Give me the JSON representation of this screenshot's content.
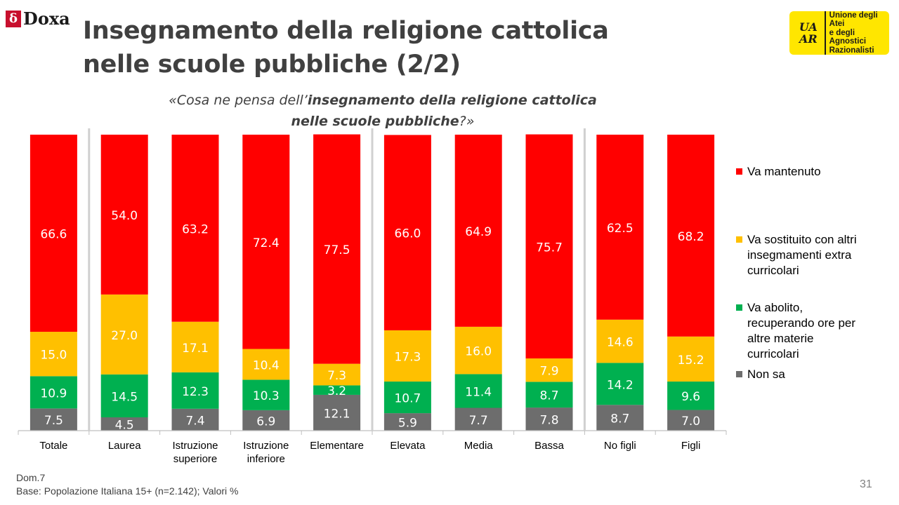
{
  "logo": {
    "text": "Doxa",
    "mark": "δ"
  },
  "title_lines": [
    "Insegnamento della religione cattolica",
    "nelle scuole pubbliche (2/2)"
  ],
  "question": {
    "p1": "«Cosa ne pensa dell’",
    "p2": "insegnamento della religione cattolica",
    "p3": "nelle scuole pubbliche",
    "p4": "?»"
  },
  "uaar": {
    "mono_line1": "UA",
    "mono_line2": "AR",
    "lines": [
      "Unione degli Atei",
      "e degli Agnostici",
      "Razionalisti"
    ]
  },
  "chart_data": {
    "type": "bar",
    "stacked": true,
    "percent": true,
    "categories": [
      [
        "Totale"
      ],
      [
        "Laurea"
      ],
      [
        "Istruzione",
        "superiore"
      ],
      [
        "Istruzione",
        "inferiore"
      ],
      [
        "Elementare"
      ],
      [
        "Elevata"
      ],
      [
        "Media"
      ],
      [
        "Bassa"
      ],
      [
        "No figli"
      ],
      [
        "Figli"
      ]
    ],
    "series": [
      {
        "name": "Non sa",
        "color": "#6d6d6d",
        "values": [
          7.5,
          4.5,
          7.4,
          6.9,
          12.1,
          5.9,
          7.7,
          7.8,
          8.7,
          7.0
        ]
      },
      {
        "name": "Va abolito, recuperando ore per altre materie curricolari",
        "color": "#00b050",
        "values": [
          10.9,
          14.5,
          12.3,
          10.3,
          3.2,
          10.7,
          11.4,
          8.7,
          14.2,
          9.6
        ]
      },
      {
        "name": "Va sostituito con altri insegmamenti extra curricolari",
        "color": "#ffc000",
        "values": [
          15.0,
          27.0,
          17.1,
          10.4,
          7.3,
          17.3,
          16.0,
          7.9,
          14.6,
          15.2
        ]
      },
      {
        "name": "Va mantenuto",
        "color": "#ff0000",
        "values": [
          66.6,
          54.0,
          63.2,
          72.4,
          77.5,
          66.0,
          64.9,
          75.7,
          62.5,
          68.2
        ]
      }
    ],
    "ylim": [
      0,
      100
    ],
    "group_separators_after": [
      0,
      4,
      7
    ],
    "legend_position": "right"
  },
  "legend": [
    {
      "lines": [
        "Va mantenuto"
      ],
      "color": "#ff0000"
    },
    {
      "lines": [
        "Va sostituito con altri",
        "insegmamenti extra",
        "curricolari"
      ],
      "color": "#ffc000"
    },
    {
      "lines": [
        "Va abolito,",
        "recuperando ore per",
        "altre materie",
        "curricolari"
      ],
      "color": "#00b050"
    },
    {
      "lines": [
        "Non sa"
      ],
      "color": "#6d6d6d"
    }
  ],
  "footer": {
    "line1": "Dom.7",
    "line2": "Base: Popolazione Italiana 15+ (n=2.142); Valori %"
  },
  "page_number": "31"
}
